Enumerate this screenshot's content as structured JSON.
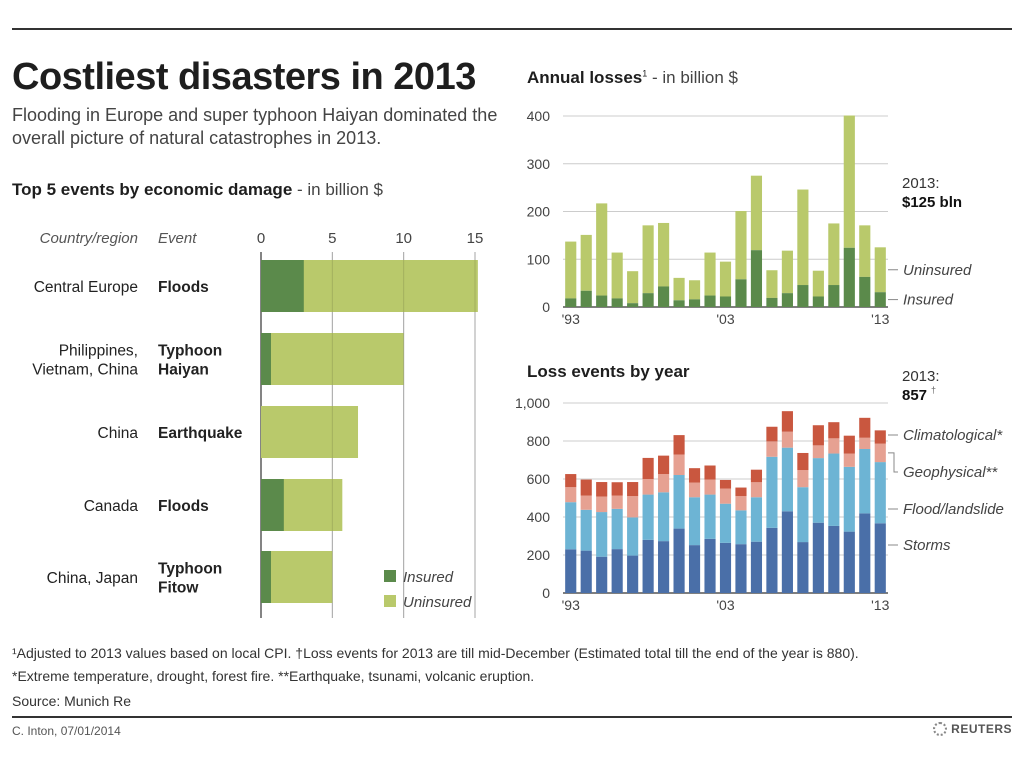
{
  "header": {
    "title": "Costliest disasters in 2013",
    "subtitle": "Flooding in Europe and super typhoon Haiyan dominated the overall picture of natural catastrophes in 2013."
  },
  "colors": {
    "insured": "#5b8a4b",
    "uninsured": "#b9c96b",
    "storms": "#4a6fa8",
    "flood": "#6db4d4",
    "geophysical": "#e6a192",
    "climatological": "#c9573f",
    "grid": "#cccccc"
  },
  "chart_data": [
    {
      "type": "bar",
      "orientation": "horizontal",
      "stacked": true,
      "title": "Top 5 events by economic damage",
      "unit_label": "- in billion $",
      "column_headers": {
        "region": "Country/region",
        "event": "Event"
      },
      "xlim": [
        0,
        15
      ],
      "xticks": [
        0,
        5,
        10,
        15
      ],
      "categories": [
        {
          "region": [
            "Central Europe"
          ],
          "event": [
            "Floods"
          ]
        },
        {
          "region": [
            "Philippines,",
            "Vietnam, China"
          ],
          "event": [
            "Typhoon",
            "Haiyan"
          ]
        },
        {
          "region": [
            "China"
          ],
          "event": [
            "Earthquake"
          ]
        },
        {
          "region": [
            "Canada"
          ],
          "event": [
            "Floods"
          ]
        },
        {
          "region": [
            "China, Japan"
          ],
          "event": [
            "Typhoon",
            "Fitow"
          ]
        }
      ],
      "series": [
        {
          "name": "Insured",
          "values": [
            3.0,
            0.7,
            0.0,
            1.6,
            0.7
          ]
        },
        {
          "name": "Uninsured",
          "values": [
            12.2,
            9.3,
            6.8,
            4.1,
            4.3
          ]
        }
      ],
      "legend": {
        "position": "bottom-right",
        "entries": [
          "Insured",
          "Uninsured"
        ]
      }
    },
    {
      "type": "bar",
      "stacked": true,
      "title": "Annual losses",
      "title_sup": "1",
      "unit_label": "- in billion $",
      "ylim": [
        0,
        400
      ],
      "yticks": [
        0,
        100,
        200,
        300,
        400
      ],
      "x": [
        1993,
        1994,
        1995,
        1996,
        1997,
        1998,
        1999,
        2000,
        2001,
        2002,
        2003,
        2004,
        2005,
        2006,
        2007,
        2008,
        2009,
        2010,
        2011,
        2012,
        2013
      ],
      "xtick_labels": {
        "1993": "'93",
        "2003": "'03",
        "2013": "'13"
      },
      "series": [
        {
          "name": "Insured",
          "values": [
            18,
            34,
            24,
            18,
            8,
            29,
            43,
            14,
            16,
            24,
            22,
            58,
            119,
            19,
            29,
            46,
            22,
            46,
            124,
            63,
            31
          ]
        },
        {
          "name": "Uninsured",
          "values": [
            119,
            117,
            193,
            96,
            67,
            142,
            133,
            47,
            40,
            90,
            73,
            143,
            156,
            58,
            89,
            200,
            54,
            129,
            277,
            108,
            94
          ]
        }
      ],
      "series_labels": [
        "Uninsured",
        "Insured"
      ],
      "annotation": {
        "label": "2013:",
        "value": "$125 bln"
      }
    },
    {
      "type": "bar",
      "stacked": true,
      "title": "Loss events by year",
      "ylim": [
        0,
        1000
      ],
      "yticks": [
        0,
        200,
        400,
        600,
        800,
        1000
      ],
      "ytick_labels": [
        "0",
        "200",
        "400",
        "600",
        "800",
        "1,000"
      ],
      "x": [
        1993,
        1994,
        1995,
        1996,
        1997,
        1998,
        1999,
        2000,
        2001,
        2002,
        2003,
        2004,
        2005,
        2006,
        2007,
        2008,
        2009,
        2010,
        2011,
        2012,
        2013
      ],
      "xtick_labels": {
        "1993": "'93",
        "2003": "'03",
        "2013": "'13"
      },
      "series": [
        {
          "name": "Storms",
          "values": [
            230,
            223,
            191,
            231,
            197,
            280,
            273,
            339,
            252,
            285,
            264,
            257,
            270,
            343,
            430,
            268,
            370,
            353,
            323,
            419,
            367
          ]
        },
        {
          "name": "Flood/landslide",
          "values": [
            248,
            215,
            235,
            212,
            201,
            238,
            257,
            282,
            252,
            233,
            206,
            178,
            234,
            374,
            335,
            289,
            340,
            381,
            341,
            339,
            322
          ]
        },
        {
          "name": "Geophysical**",
          "values": [
            79,
            75,
            82,
            70,
            112,
            82,
            96,
            108,
            77,
            79,
            80,
            75,
            79,
            81,
            84,
            90,
            67,
            80,
            70,
            59,
            97
          ]
        },
        {
          "name": "Climatological*",
          "values": [
            69,
            84,
            76,
            70,
            74,
            111,
            97,
            102,
            76,
            74,
            45,
            45,
            66,
            77,
            108,
            90,
            106,
            85,
            94,
            105,
            70
          ]
        }
      ],
      "series_labels": [
        "Climatological*",
        "Geophysical**",
        "Flood/landslide",
        "Storms"
      ],
      "annotation": {
        "label": "2013:",
        "value": "857",
        "value_sup": "†"
      }
    }
  ],
  "footnotes": {
    "line1": "¹Adjusted to 2013 values based on local CPI.   †Loss events for 2013 are till mid-December (Estimated total till the end of the year is 880).",
    "line2": "*Extreme temperature, drought, forest fire.   **Earthquake, tsunami, volcanic eruption.",
    "source": "Source: Munich Re"
  },
  "footer": {
    "byline": "C. Inton, 07/01/2014",
    "brand": "REUTERS"
  }
}
